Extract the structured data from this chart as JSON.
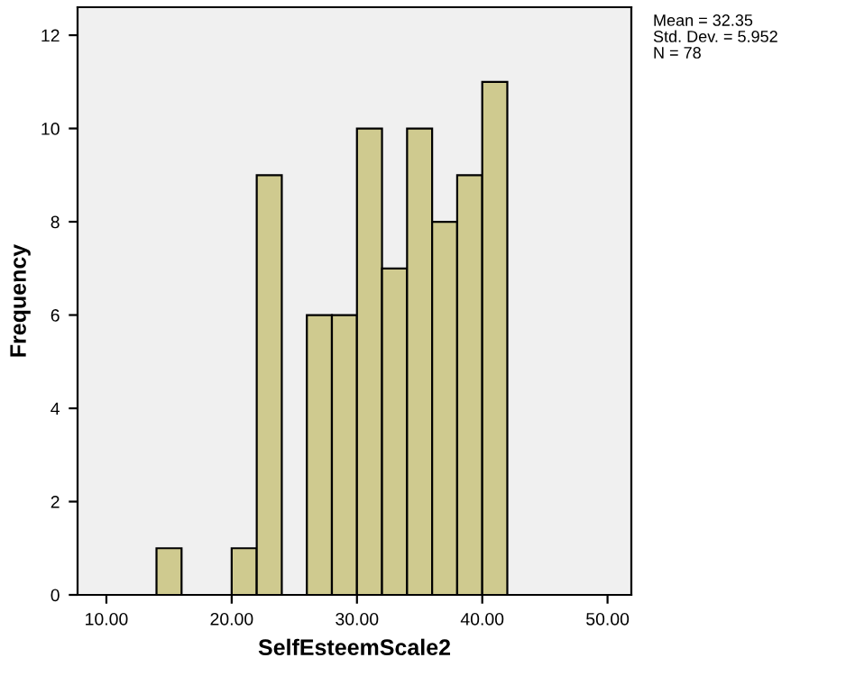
{
  "chart_data": {
    "type": "histogram",
    "xlabel": "SelfEsteemScale2",
    "ylabel": "Frequency",
    "bins": [
      14,
      16,
      18,
      20,
      22,
      24,
      26,
      28,
      30,
      32,
      34,
      36,
      38,
      40,
      42
    ],
    "values": [
      1,
      0,
      0,
      1,
      9,
      0,
      6,
      6,
      10,
      7,
      10,
      8,
      9,
      11
    ],
    "color": "#cfca8f",
    "xlim": [
      7.7,
      51.9
    ],
    "ylim": [
      0,
      12.6
    ],
    "xticks": [
      {
        "value": 10,
        "label": "10.00"
      },
      {
        "value": 20,
        "label": "20.00"
      },
      {
        "value": 30,
        "label": "30.00"
      },
      {
        "value": 40,
        "label": "40.00"
      },
      {
        "value": 50,
        "label": "50.00"
      }
    ],
    "yticks": [
      0,
      2,
      4,
      6,
      8,
      10,
      12
    ],
    "grid": false,
    "annotations": [
      "Mean = 32.35",
      "Std. Dev. = 5.952",
      "N = 78"
    ]
  }
}
